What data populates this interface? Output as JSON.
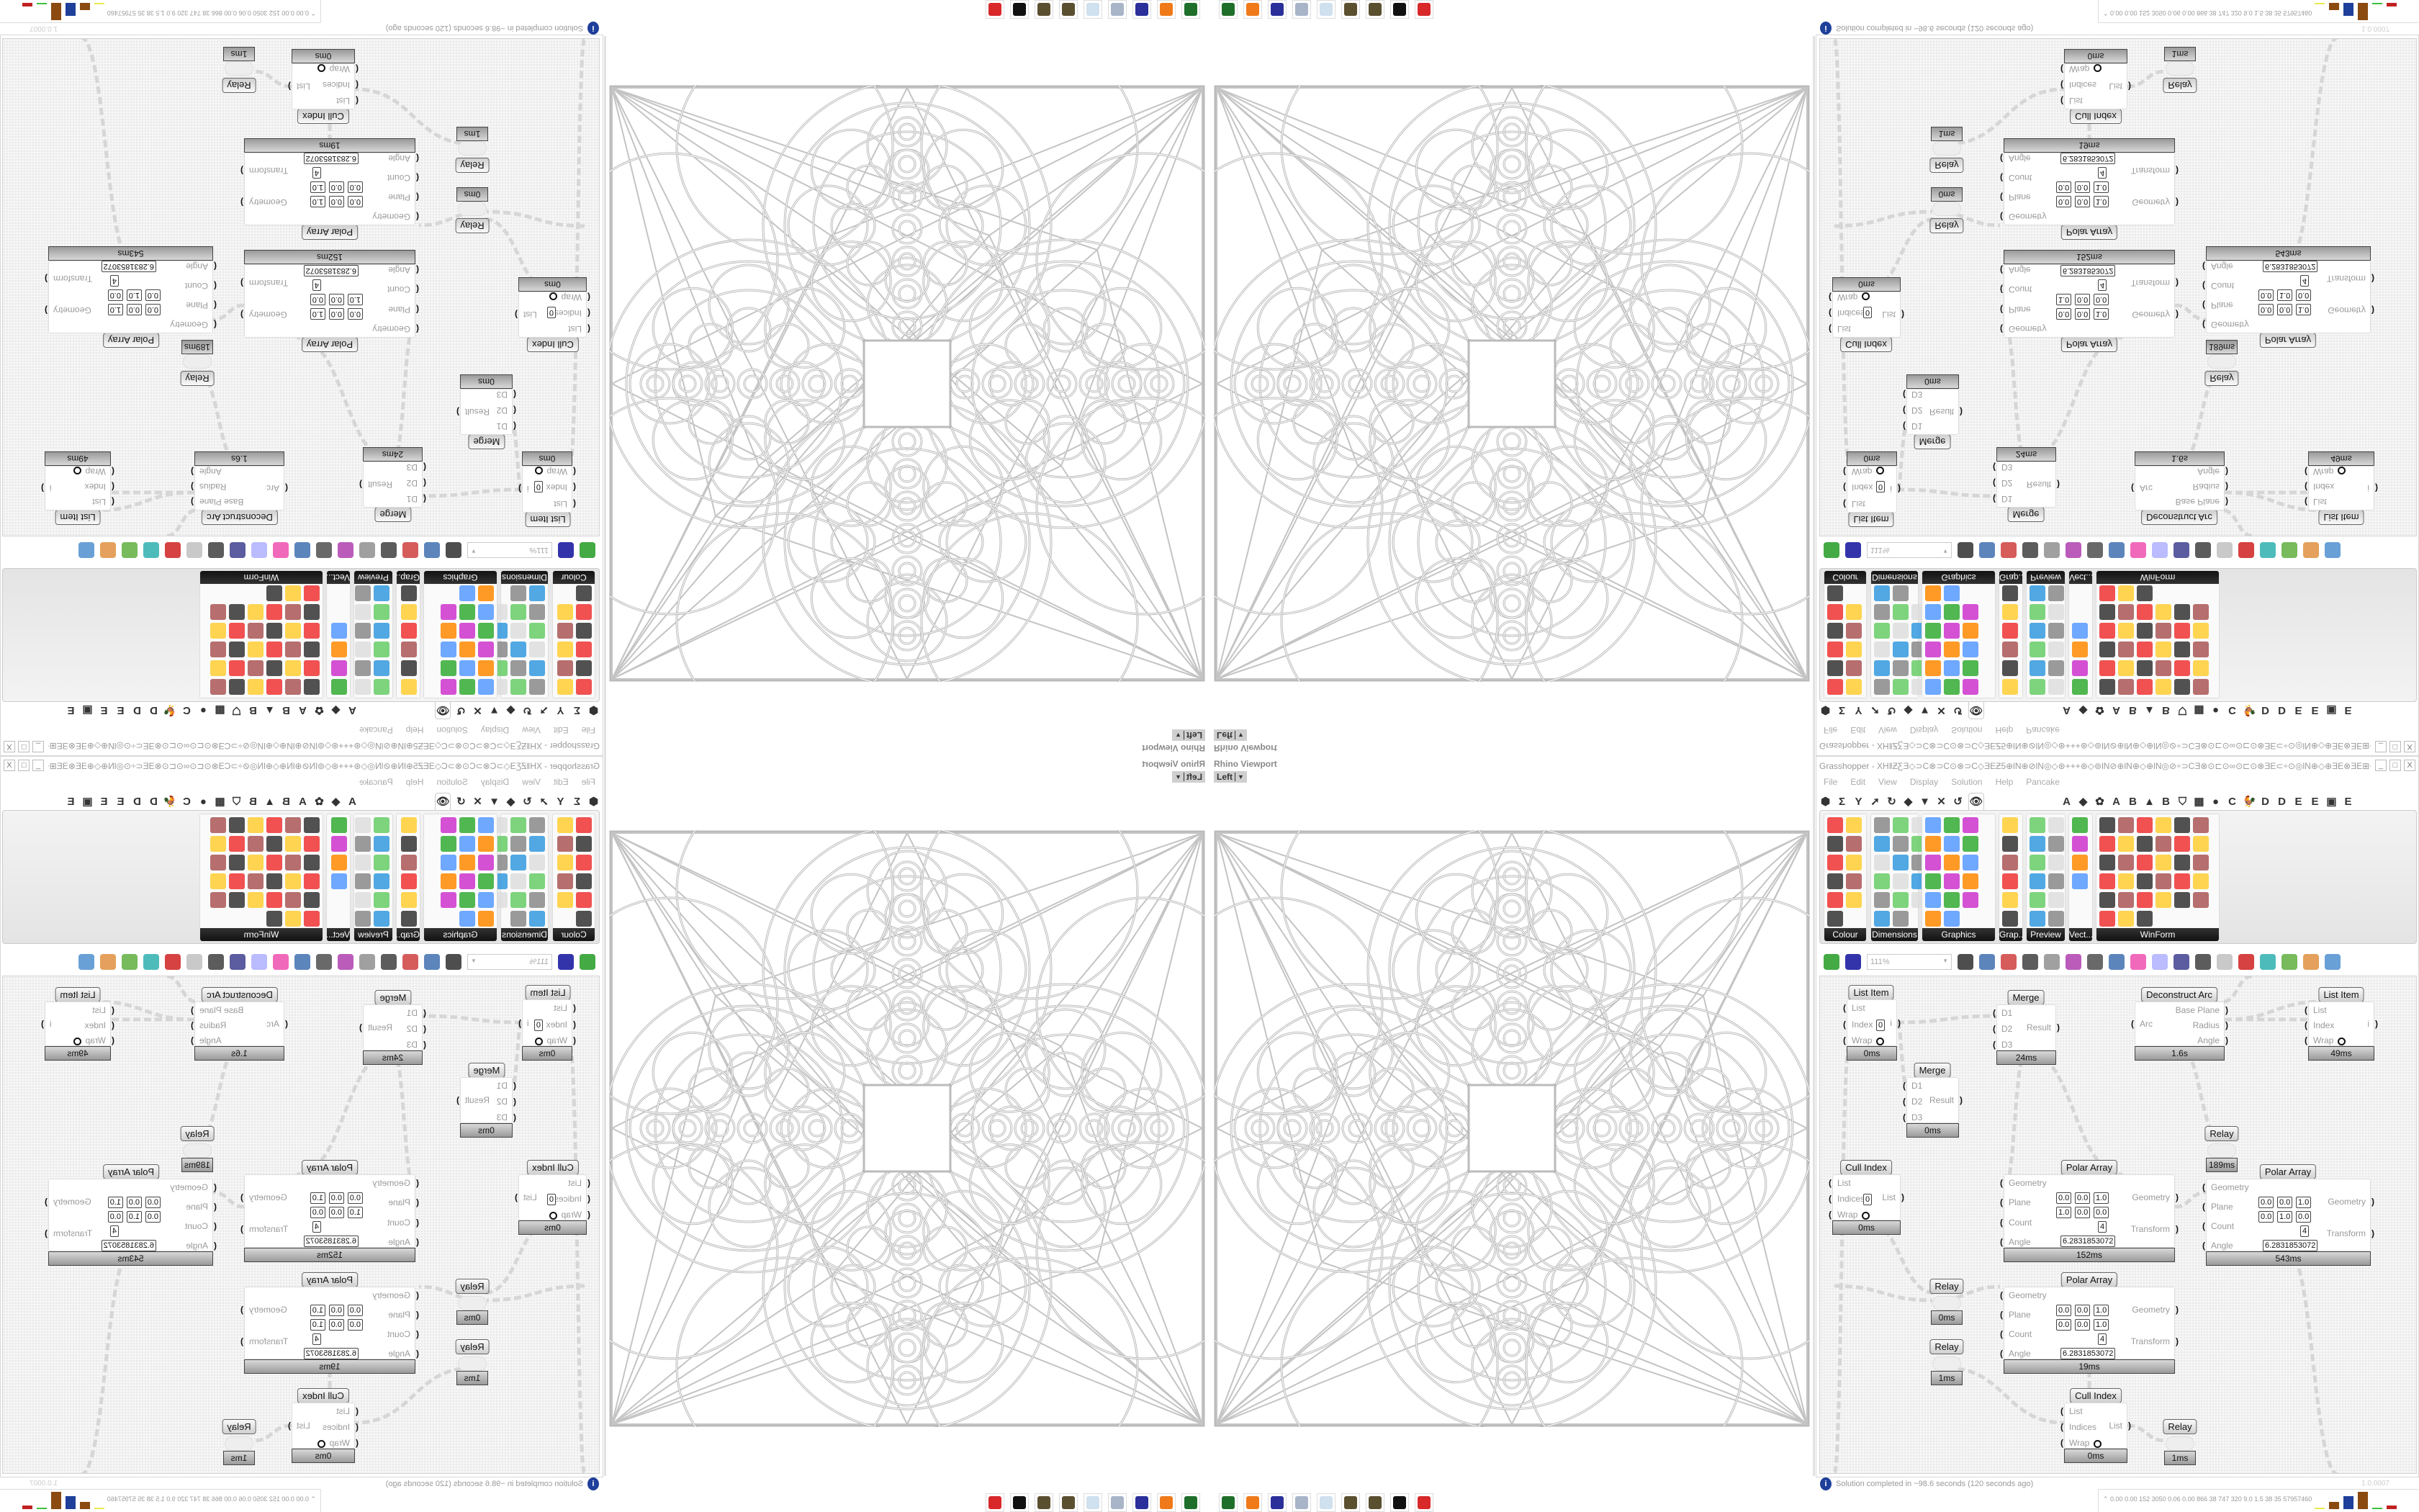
{
  "viewport": {
    "title": "Rhino Viewport",
    "view": "Left",
    "dropdown_icon": "chevron-down-icon"
  },
  "grasshopper": {
    "title": "Grasshopper - XH‖ƵƸƎ◇⊃C⊗⊃C⊙⊗⊃C◇ƎEƵ5⊕lN⊕⊘lN◎◇⊛+++⊛◇⊚lN⊘⊕lN⊕◇⊕lN◎⊘÷⊃CƎ⊗⊙⊏⊙∞⊙⊏⊙⊗ƎE⊂÷⊙◎lN⊕◇⊕ƎE⊗ƎE⊞+Ƶ5÷⊞ƎE⊗ƎE⊕◇⊕⊗⊏ƎE⊞÷⊃C...",
    "window_buttons": [
      "_",
      "□",
      "X"
    ],
    "menu": [
      "File",
      "Edit",
      "View",
      "Display",
      "Solution",
      "Help",
      "Pancake"
    ],
    "tabs": [
      "⬢",
      "Σ",
      "Y",
      "➚",
      "↻",
      "◆",
      "▼",
      "✕",
      "↺",
      "👁",
      "A",
      "◆",
      "✿",
      "A",
      "B",
      "▲",
      "B",
      "⛉",
      "▦",
      "●",
      "C",
      "🐓",
      "D",
      "D",
      "E",
      "E",
      "▣",
      "E"
    ],
    "active_tab_index": 9,
    "ribbon_groups": [
      {
        "label": "Colour",
        "icon_count": 11
      },
      {
        "label": "Dimensions",
        "icon_count": 17
      },
      {
        "label": "Graphics",
        "icon_count": 17
      },
      {
        "label": "Grap...",
        "icon_count": 6
      },
      {
        "label": "Preview",
        "icon_count": 12
      },
      {
        "label": "Vect...",
        "icon_count": 4
      },
      {
        "label": "WinForm",
        "icon_count": 33
      }
    ],
    "toolbar": {
      "zoom": "111%"
    },
    "components": [
      {
        "title": "List Item",
        "inputs": [
          "List",
          "Index",
          "Wrap"
        ],
        "outputs": [
          "i"
        ],
        "index_value": "0",
        "timer": "0ms"
      },
      {
        "title": "Merge",
        "inputs": [
          "D1",
          "D2",
          "D3"
        ],
        "outputs": [
          "Result"
        ],
        "timer": "24ms"
      },
      {
        "title": "Merge",
        "inputs": [
          "D1",
          "D2",
          "D3"
        ],
        "outputs": [
          "Result"
        ],
        "timer": "0ms"
      },
      {
        "title": "Deconstruct Arc",
        "inputs": [
          "Arc"
        ],
        "outputs": [
          "Base Plane",
          "Radius",
          "Angle"
        ],
        "timer": "1.6s"
      },
      {
        "title": "List Item",
        "inputs": [
          "List",
          "Index",
          "Wrap"
        ],
        "outputs": [
          "i"
        ],
        "timer": "49ms"
      },
      {
        "title": "Relay",
        "inputs": [],
        "outputs": [],
        "timer": "189ms"
      },
      {
        "title": "Cull Index",
        "inputs": [
          "List",
          "Indices",
          "Wrap"
        ],
        "outputs": [
          "List"
        ],
        "index_value": "0",
        "timer": "0ms"
      },
      {
        "title": "Polar Array",
        "inputs": [
          "Geometry",
          "Plane",
          "Count",
          "Angle"
        ],
        "outputs": [
          "Geometry",
          "Transform"
        ],
        "plane": [
          [
            "0.0",
            "0.0",
            "1.0"
          ],
          [
            "1.0",
            "0.0",
            "0.0"
          ]
        ],
        "count": "4",
        "angle": "6.2831853072",
        "timer": "152ms"
      },
      {
        "title": "Polar Array",
        "inputs": [
          "Geometry",
          "Plane",
          "Count",
          "Angle"
        ],
        "outputs": [
          "Geometry",
          "Transform"
        ],
        "plane": [
          [
            "0.0",
            "0.0",
            "1.0"
          ],
          [
            "0.0",
            "1.0",
            "0.0"
          ]
        ],
        "count": "4",
        "angle": "6.2831853072",
        "timer": "543ms"
      },
      {
        "title": "Relay",
        "inputs": [],
        "outputs": [],
        "timer": "0ms"
      },
      {
        "title": "Polar Array",
        "inputs": [
          "Geometry",
          "Plane",
          "Count",
          "Angle"
        ],
        "outputs": [
          "Geometry",
          "Transform"
        ],
        "plane": [
          [
            "0.0",
            "0.0",
            "1.0"
          ],
          [
            "0.0",
            "0.0",
            "1.0"
          ]
        ],
        "count": "4",
        "angle": "6.2831853072",
        "timer": "19ms"
      },
      {
        "title": "Relay",
        "inputs": [],
        "outputs": [],
        "timer": "1ms"
      },
      {
        "title": "Cull Index",
        "inputs": [
          "List",
          "Indices",
          "Wrap"
        ],
        "outputs": [
          "List"
        ],
        "timer": "0ms"
      },
      {
        "title": "Relay",
        "inputs": [],
        "outputs": [],
        "timer": "1ms"
      }
    ],
    "status": "Solution completed in ~98.6 seconds (120 seconds ago)",
    "version": "1.0.0007"
  },
  "taskbar": {
    "icons": [
      "terminal-icon",
      "firefox-icon",
      "floppy-64-icon",
      "notes-icon",
      "notepad-icon",
      "gear-icon",
      "gear-icon",
      "inkscape-icon",
      "red-app-icon"
    ],
    "icon_colors": [
      "#1f6f2a",
      "#f07a1a",
      "#2a2f9a",
      "#a8b4c8",
      "#cfe0ee",
      "#5a5030",
      "#5a5030",
      "#111111",
      "#d8282a"
    ]
  },
  "stats": {
    "text": "0.00 0.00 152 3050 0.06 0.00 866 38 747 320 9.0 1.5 38 35 57957460",
    "bar_colors": [
      "#e8e850",
      "#8a4a10",
      "#1e3f9a",
      "#8a4a10",
      "#40c040",
      "#c02020"
    ]
  }
}
